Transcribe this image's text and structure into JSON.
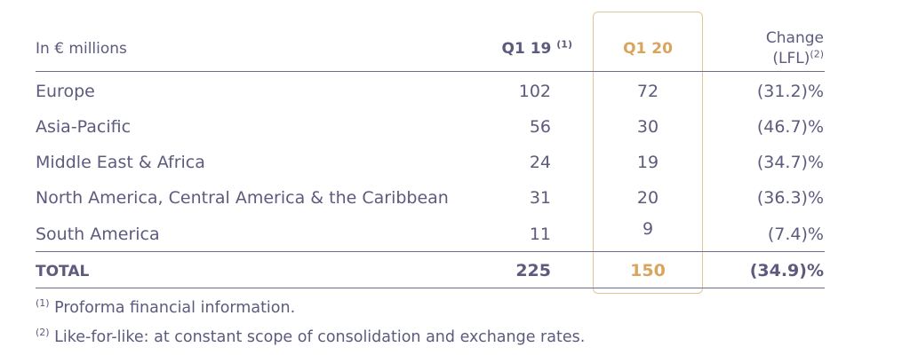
{
  "table": {
    "header": {
      "label": "In € millions",
      "q119": "Q1 19",
      "q119_note": "(1)",
      "q120": "Q1 20",
      "change_line1": "Change",
      "change_line2": "(LFL)",
      "change_note": "(2)"
    },
    "rows": [
      {
        "region": "Europe",
        "q119": "102",
        "q120": "72",
        "change": "(31.2)%"
      },
      {
        "region": "Asia-Pacific",
        "q119": "56",
        "q120": "30",
        "change": "(46.7)%"
      },
      {
        "region": "Middle East & Africa",
        "q119": "24",
        "q120": "19",
        "change": "(34.7)%"
      },
      {
        "region": "North America, Central America & the Caribbean",
        "q119": "31",
        "q120": "20",
        "change": "(36.3)%"
      },
      {
        "region": "South America",
        "q119": "11",
        "q120": "9",
        "change": "(7.4)%"
      }
    ],
    "total": {
      "label": "TOTAL",
      "q119": "225",
      "q120": "150",
      "change": "(34.9)%"
    }
  },
  "footnotes": [
    {
      "mark": "(1)",
      "text": "Proforma financial information."
    },
    {
      "mark": "(2)",
      "text": "Like-for-like: at constant scope of consolidation and exchange rates."
    }
  ],
  "colors": {
    "text": "#5c5b7e",
    "highlight": "#d9a55e",
    "highlight_border": "#e2c596"
  }
}
